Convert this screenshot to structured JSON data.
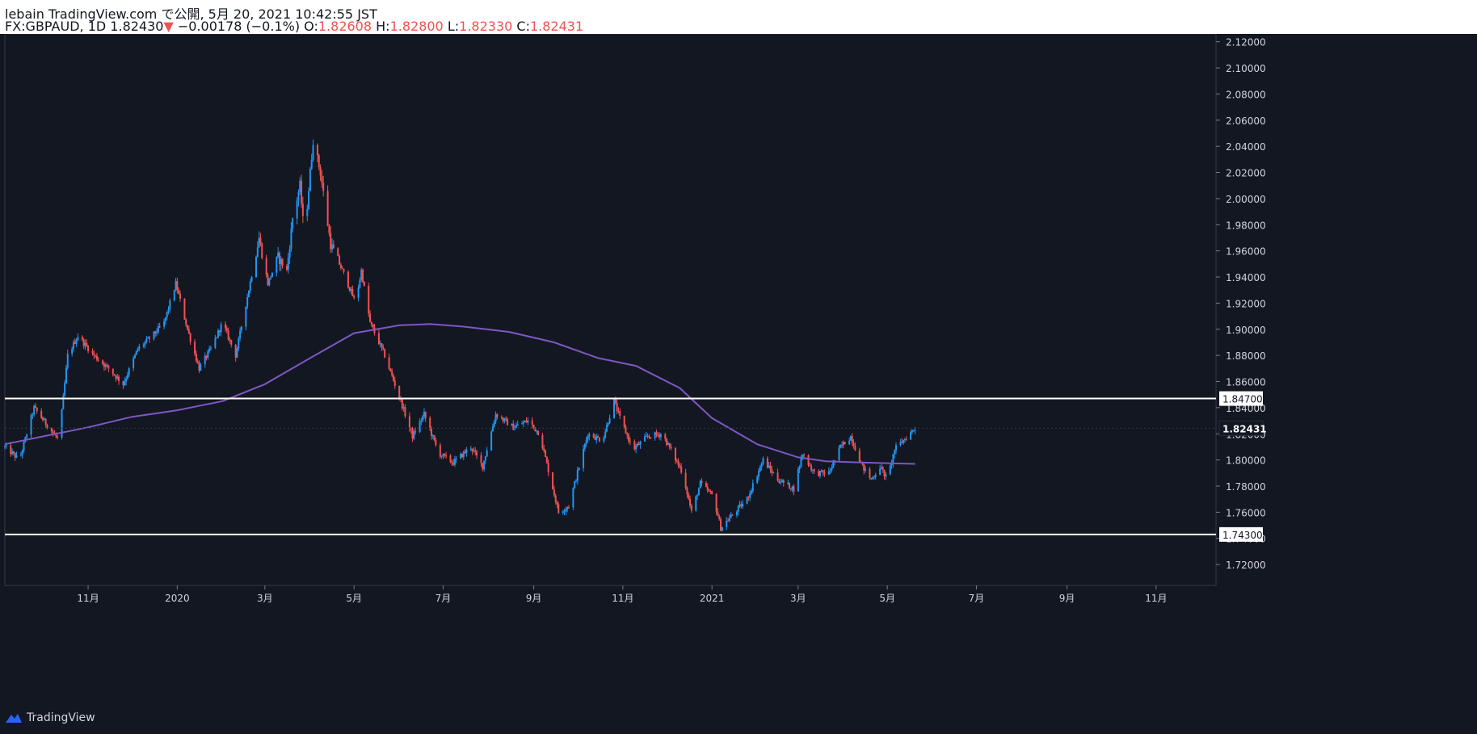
{
  "header": {
    "line1": "lebain TradingView.com で公開, 5月 20, 2021 10:42:55 JST",
    "symbol": "FX:GBPAUD, 1D",
    "last": "1.82430",
    "arrow": "▼",
    "change": "−0.00178 (−0.1%)",
    "o_label": "O:",
    "o_val": "1.82608",
    "h_label": "H:",
    "h_val": "1.82800",
    "l_label": "L:",
    "l_val": "1.82330",
    "c_label": "C:",
    "c_val": "1.82431"
  },
  "footer": {
    "brand": "TradingView"
  },
  "colors": {
    "background": "#131722",
    "up": "#2196f3",
    "down": "#ef5350",
    "ma": "#7e57c2",
    "grid_text": "#d1d4dc",
    "level_line": "#ffffff"
  },
  "chart_data": {
    "type": "candlestick",
    "symbol": "FX:GBPAUD",
    "interval": "1D",
    "ylim": [
      1.704,
      2.126
    ],
    "y_ticks": [
      "2.12000",
      "2.10000",
      "2.08000",
      "2.06000",
      "2.04000",
      "2.02000",
      "2.00000",
      "1.98000",
      "1.96000",
      "1.94000",
      "1.92000",
      "1.90000",
      "1.88000",
      "1.86000",
      "1.84000",
      "1.82000",
      "1.80000",
      "1.78000",
      "1.76000",
      "1.74000",
      "1.72000"
    ],
    "x_ticks": [
      {
        "label": "11月",
        "date": "2019-11-01"
      },
      {
        "label": "2020",
        "date": "2020-01-01"
      },
      {
        "label": "3月",
        "date": "2020-03-01"
      },
      {
        "label": "5月",
        "date": "2020-05-01"
      },
      {
        "label": "7月",
        "date": "2020-07-01"
      },
      {
        "label": "9月",
        "date": "2020-09-01"
      },
      {
        "label": "11月",
        "date": "2020-11-01"
      },
      {
        "label": "2021",
        "date": "2021-01-01"
      },
      {
        "label": "3月",
        "date": "2021-03-01"
      },
      {
        "label": "5月",
        "date": "2021-05-01"
      },
      {
        "label": "7月",
        "date": "2021-07-01"
      },
      {
        "label": "9月",
        "date": "2021-09-01"
      },
      {
        "label": "11月",
        "date": "2021-11-01"
      }
    ],
    "x_start": "2019-09-05",
    "x_end": "2021-12-12",
    "horizontal_levels": [
      {
        "value": 1.847,
        "label": "1.84700"
      },
      {
        "value": 1.743,
        "label": "1.74300"
      }
    ],
    "last_price": {
      "value": 1.82431,
      "label": "1.82431"
    },
    "price_path": [
      [
        "2019-09-05",
        1.81
      ],
      [
        "2019-09-15",
        1.8
      ],
      [
        "2019-09-25",
        1.84
      ],
      [
        "2019-10-05",
        1.825
      ],
      [
        "2019-10-12",
        1.815
      ],
      [
        "2019-10-18",
        1.88
      ],
      [
        "2019-10-25",
        1.895
      ],
      [
        "2019-11-05",
        1.88
      ],
      [
        "2019-11-15",
        1.87
      ],
      [
        "2019-11-25",
        1.858
      ],
      [
        "2019-12-05",
        1.885
      ],
      [
        "2019-12-15",
        1.895
      ],
      [
        "2019-12-23",
        1.905
      ],
      [
        "2019-12-31",
        1.935
      ],
      [
        "2020-01-08",
        1.9
      ],
      [
        "2020-01-16",
        1.87
      ],
      [
        "2020-01-24",
        1.885
      ],
      [
        "2020-02-01",
        1.905
      ],
      [
        "2020-02-10",
        1.88
      ],
      [
        "2020-02-18",
        1.925
      ],
      [
        "2020-02-26",
        1.97
      ],
      [
        "2020-03-03",
        1.935
      ],
      [
        "2020-03-10",
        1.955
      ],
      [
        "2020-03-16",
        1.945
      ],
      [
        "2020-03-20",
        1.985
      ],
      [
        "2020-03-25",
        2.01
      ],
      [
        "2020-03-28",
        1.97
      ],
      [
        "2020-04-03",
        2.045
      ],
      [
        "2020-04-08",
        2.02
      ],
      [
        "2020-04-15",
        1.965
      ],
      [
        "2020-04-25",
        1.94
      ],
      [
        "2020-05-02",
        1.92
      ],
      [
        "2020-05-06",
        1.945
      ],
      [
        "2020-05-12",
        1.905
      ],
      [
        "2020-05-22",
        1.88
      ],
      [
        "2020-06-02",
        1.845
      ],
      [
        "2020-06-10",
        1.818
      ],
      [
        "2020-06-18",
        1.835
      ],
      [
        "2020-06-28",
        1.805
      ],
      [
        "2020-07-08",
        1.798
      ],
      [
        "2020-07-20",
        1.81
      ],
      [
        "2020-07-28",
        1.795
      ],
      [
        "2020-08-06",
        1.835
      ],
      [
        "2020-08-18",
        1.825
      ],
      [
        "2020-08-28",
        1.83
      ],
      [
        "2020-09-05",
        1.82
      ],
      [
        "2020-09-18",
        1.76
      ],
      [
        "2020-09-25",
        1.765
      ],
      [
        "2020-10-08",
        1.82
      ],
      [
        "2020-10-18",
        1.815
      ],
      [
        "2020-10-26",
        1.845
      ],
      [
        "2020-10-30",
        1.832
      ],
      [
        "2020-11-08",
        1.808
      ],
      [
        "2020-11-18",
        1.818
      ],
      [
        "2020-11-28",
        1.82
      ],
      [
        "2020-12-05",
        1.805
      ],
      [
        "2020-12-12",
        1.79
      ],
      [
        "2020-12-18",
        1.76
      ],
      [
        "2020-12-24",
        1.782
      ],
      [
        "2021-01-02",
        1.772
      ],
      [
        "2021-01-07",
        1.748
      ],
      [
        "2021-01-15",
        1.758
      ],
      [
        "2021-01-25",
        1.77
      ],
      [
        "2021-02-05",
        1.8
      ],
      [
        "2021-02-15",
        1.785
      ],
      [
        "2021-02-26",
        1.778
      ],
      [
        "2021-03-04",
        1.805
      ],
      [
        "2021-03-12",
        1.79
      ],
      [
        "2021-03-22",
        1.79
      ],
      [
        "2021-03-30",
        1.81
      ],
      [
        "2021-04-06",
        1.818
      ],
      [
        "2021-04-14",
        1.795
      ],
      [
        "2021-04-20",
        1.785
      ],
      [
        "2021-04-26",
        1.795
      ],
      [
        "2021-05-01",
        1.785
      ],
      [
        "2021-05-06",
        1.808
      ],
      [
        "2021-05-12",
        1.815
      ],
      [
        "2021-05-20",
        1.82431
      ]
    ],
    "ma_path": [
      [
        "2019-09-05",
        1.812
      ],
      [
        "2019-10-01",
        1.818
      ],
      [
        "2019-11-01",
        1.825
      ],
      [
        "2019-12-01",
        1.833
      ],
      [
        "2020-01-01",
        1.838
      ],
      [
        "2020-02-01",
        1.845
      ],
      [
        "2020-03-01",
        1.858
      ],
      [
        "2020-04-01",
        1.878
      ],
      [
        "2020-05-01",
        1.897
      ],
      [
        "2020-06-01",
        1.903
      ],
      [
        "2020-06-22",
        1.904
      ],
      [
        "2020-07-15",
        1.902
      ],
      [
        "2020-08-15",
        1.898
      ],
      [
        "2020-09-15",
        1.89
      ],
      [
        "2020-10-15",
        1.878
      ],
      [
        "2020-11-10",
        1.872
      ],
      [
        "2020-12-10",
        1.855
      ],
      [
        "2021-01-01",
        1.832
      ],
      [
        "2021-02-01",
        1.812
      ],
      [
        "2021-03-01",
        1.802
      ],
      [
        "2021-03-20",
        1.799
      ],
      [
        "2021-04-15",
        1.798
      ],
      [
        "2021-05-20",
        1.797
      ]
    ]
  }
}
